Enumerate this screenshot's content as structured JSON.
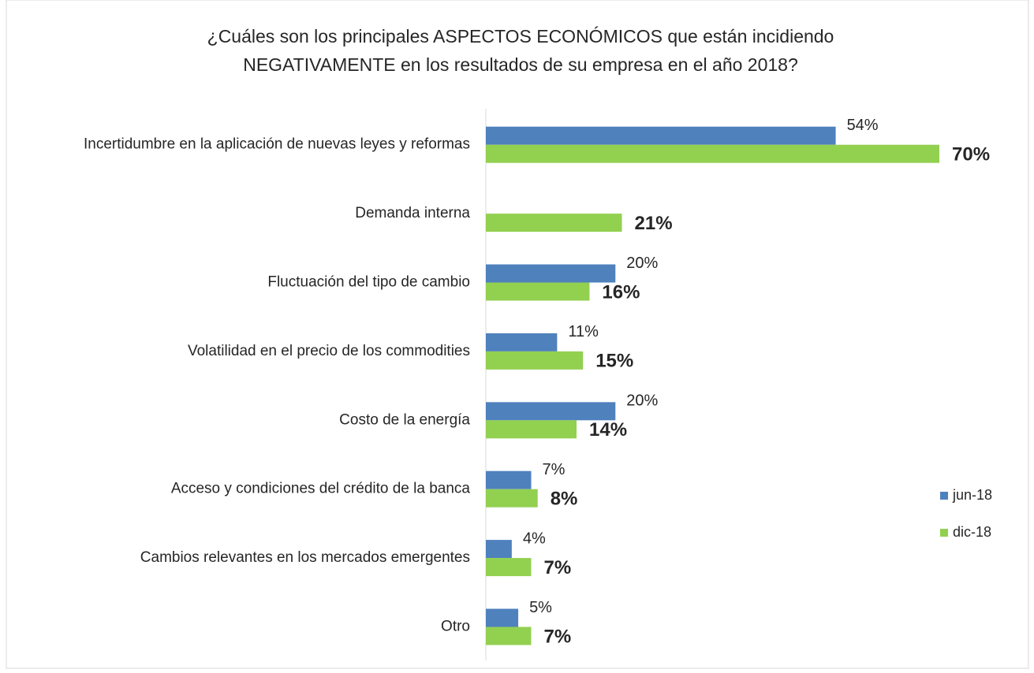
{
  "chart_data": {
    "type": "bar",
    "orientation": "horizontal",
    "title": [
      "¿Cuáles son los principales ASPECTOS ECONÓMICOS que están incidiendo",
      "NEGATIVAMENTE en los resultados de su empresa en el año 2018?"
    ],
    "categories": [
      "Incertidumbre en la aplicación de nuevas leyes y reformas",
      "Demanda interna",
      "Fluctuación del tipo de cambio",
      "Volatilidad en el precio de los commodities",
      "Costo de la energía",
      "Acceso y condiciones del crédito de la banca",
      "Cambios relevantes en los mercados emergentes",
      "Otro"
    ],
    "series": [
      {
        "name": "jun-18",
        "color": "#4f81bd",
        "values": [
          54,
          null,
          20,
          11,
          20,
          7,
          4,
          5
        ],
        "value_labels": [
          "54%",
          null,
          "20%",
          "11%",
          "20%",
          "7%",
          "4%",
          "5%"
        ]
      },
      {
        "name": "dic-18",
        "color": "#92d050",
        "values": [
          70,
          21,
          16,
          15,
          14,
          8,
          7,
          7
        ],
        "value_labels": [
          "70%",
          "21%",
          "16%",
          "15%",
          "14%",
          "8%",
          "7%",
          "7%"
        ]
      }
    ],
    "legend": "right"
  }
}
